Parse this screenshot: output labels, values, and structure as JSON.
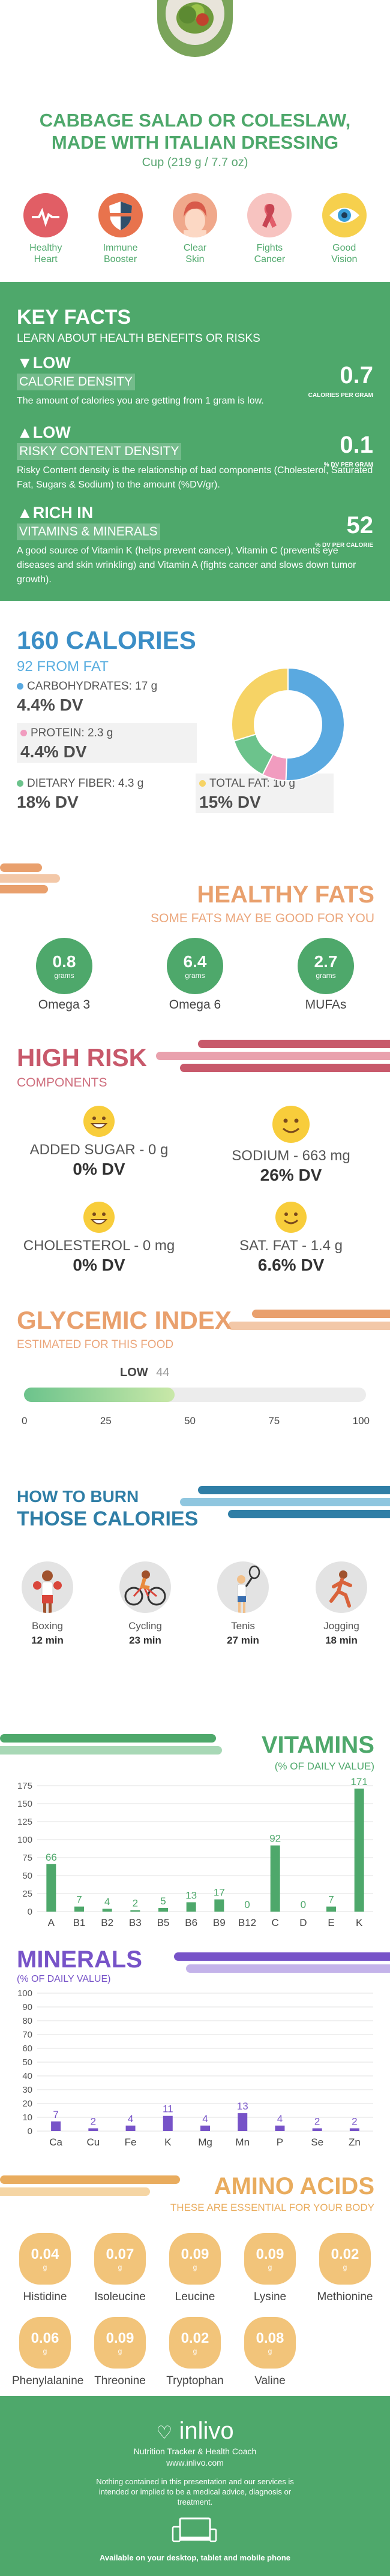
{
  "header": {
    "title_line1": "CABBAGE SALAD OR COLESLAW,",
    "title_line2": "MADE WITH ITALIAN DRESSING",
    "serving": "Cup (219 g / 7.7 oz)",
    "benefits": [
      {
        "line1": "Healthy",
        "line2": "Heart",
        "icon": "heart-icon"
      },
      {
        "line1": "Immune",
        "line2": "Booster",
        "icon": "shield-icon"
      },
      {
        "line1": "Clear",
        "line2": "Skin",
        "icon": "face-icon"
      },
      {
        "line1": "Fights",
        "line2": "Cancer",
        "icon": "ribbon-icon"
      },
      {
        "line1": "Good",
        "line2": "Vision",
        "icon": "eye-icon"
      }
    ]
  },
  "keyfacts": {
    "title": "KEY FACTS",
    "subtitle": "LEARN ABOUT HEALTH BENEFITS OR RISKS",
    "items": [
      {
        "level": "LOW",
        "name": "CALORIE DENSITY",
        "desc": "The amount of calories you are getting from 1 gram is low.",
        "value": "0.7",
        "unit": "CALORIES PER GRAM"
      },
      {
        "level": "LOW",
        "name": "RISKY CONTENT DENSITY",
        "desc": "Risky Content density is the relationship of bad components (Cholesterol, Saturated Fat, Sugars & Sodium) to the amount (%DV/gr).",
        "value": "0.1",
        "unit": "% DV PER GRAM"
      },
      {
        "level": "RICH  IN",
        "name": "VITAMINS & MINERALS",
        "desc": "A good source of Vitamin K (helps prevent cancer), Vitamin C (prevents eye diseases and skin wrinkling) and Vitamin A (fights cancer and slows down tumor growth).",
        "value": "52",
        "unit": "% DV PER CALORIE"
      }
    ]
  },
  "calories": {
    "title": "160 CALORIES",
    "from_fat": "92 FROM FAT",
    "macros": [
      {
        "label": "CARBOHYDRATES: 17 g",
        "dv": "4.4% DV",
        "color": "#5aa9e0"
      },
      {
        "label": "PROTEIN: 2.3 g",
        "dv": "4.4% DV",
        "color": "#f19cbf"
      },
      {
        "label": "DIETARY FIBER: 4.3 g",
        "dv": "18% DV",
        "color": "#6cc38c"
      },
      {
        "label": "TOTAL FAT: 10 g",
        "dv": "15% DV",
        "color": "#f6d365"
      }
    ]
  },
  "healthy_fats": {
    "title": "HEALTHY FATS",
    "subtitle": "SOME FATS MAY BE GOOD FOR YOU",
    "items": [
      {
        "value": "0.8",
        "unit": "grams",
        "name": "Omega 3"
      },
      {
        "value": "6.4",
        "unit": "grams",
        "name": "Omega 6"
      },
      {
        "value": "2.7",
        "unit": "grams",
        "name": "MUFAs"
      }
    ]
  },
  "high_risk": {
    "title": "HIGH RISK",
    "subtitle": "COMPONENTS",
    "items": [
      {
        "label": "ADDED SUGAR - 0 g",
        "dv": "0% DV"
      },
      {
        "label": "SODIUM - 663 mg",
        "dv": "26% DV"
      },
      {
        "label": "CHOLESTEROL - 0 mg",
        "dv": "0% DV"
      },
      {
        "label": "SAT. FAT - 1.4 g",
        "dv": "6.6% DV"
      }
    ]
  },
  "glycemic": {
    "title": "GLYCEMIC INDEX",
    "subtitle": "ESTIMATED FOR THIS FOOD",
    "level": "LOW",
    "value": "44",
    "index": 44,
    "ticks": [
      "0",
      "25",
      "50",
      "75",
      "100"
    ]
  },
  "burn": {
    "title_line1": "HOW TO BURN",
    "title_line2": "THOSE CALORIES",
    "activities": [
      {
        "name": "Boxing",
        "time": "12 min",
        "icon": "boxing-icon"
      },
      {
        "name": "Cycling",
        "time": "23 min",
        "icon": "cycling-icon"
      },
      {
        "name": "Tenis",
        "time": "27 min",
        "icon": "tennis-icon"
      },
      {
        "name": "Jogging",
        "time": "18 min",
        "icon": "jogging-icon"
      }
    ]
  },
  "vitamins": {
    "title": "VITAMINS",
    "subtitle": "(% OF DAILY VALUE)"
  },
  "minerals": {
    "title": "MINERALS",
    "subtitle": "(% OF DAILY VALUE)"
  },
  "amino": {
    "title": "AMINO ACIDS",
    "subtitle": "THESE ARE ESSENTIAL FOR YOUR BODY",
    "items": [
      {
        "value": "0.04",
        "unit": "g",
        "name": "Histidine"
      },
      {
        "value": "0.07",
        "unit": "g",
        "name": "Isoleucine"
      },
      {
        "value": "0.09",
        "unit": "g",
        "name": "Leucine"
      },
      {
        "value": "0.09",
        "unit": "g",
        "name": "Lysine"
      },
      {
        "value": "0.02",
        "unit": "g",
        "name": "Methionine"
      },
      {
        "value": "0.06",
        "unit": "g",
        "name": "Phenylalanine"
      },
      {
        "value": "0.09",
        "unit": "g",
        "name": "Threonine"
      },
      {
        "value": "0.02",
        "unit": "g",
        "name": "Tryptophan"
      },
      {
        "value": "0.08",
        "unit": "g",
        "name": "Valine"
      }
    ]
  },
  "footer": {
    "brand": "inlivo",
    "tagline": "Nutrition Tracker & Health Coach",
    "url": "www.inlivo.com",
    "disclaimer": "Nothing contained in this presentation and our services is intended or implied to be a medical advice, diagnosis or treatment.",
    "available": "Available on your desktop, tablet and mobile phone"
  },
  "chart_data": [
    {
      "type": "pie",
      "categories": [
        "Carbohydrates",
        "Protein",
        "Dietary Fiber",
        "Total Fat"
      ],
      "values": [
        17,
        2.3,
        4.3,
        10
      ]
    },
    {
      "type": "bar",
      "title": "VITAMINS",
      "subtitle": "(% OF DAILY VALUE)",
      "categories": [
        "A",
        "B1",
        "B2",
        "B3",
        "B5",
        "B6",
        "B9",
        "B12",
        "C",
        "D",
        "E",
        "K"
      ],
      "values": [
        66,
        7,
        4,
        2,
        5,
        13,
        17,
        0,
        92,
        0,
        7,
        171
      ],
      "yticks": [
        0,
        25,
        50,
        75,
        100,
        125,
        150,
        175
      ],
      "ylim": [
        0,
        175
      ],
      "color": "#4ea86b"
    },
    {
      "type": "bar",
      "title": "MINERALS",
      "subtitle": "(% OF DAILY VALUE)",
      "categories": [
        "Ca",
        "Cu",
        "Fe",
        "K",
        "Mg",
        "Mn",
        "P",
        "Se",
        "Zn"
      ],
      "values": [
        7,
        2,
        4,
        11,
        4,
        13,
        4,
        2,
        2
      ],
      "yticks": [
        0,
        10,
        20,
        30,
        40,
        50,
        60,
        70,
        80,
        90,
        100
      ],
      "ylim": [
        0,
        100
      ],
      "color": "#7753c8"
    }
  ]
}
